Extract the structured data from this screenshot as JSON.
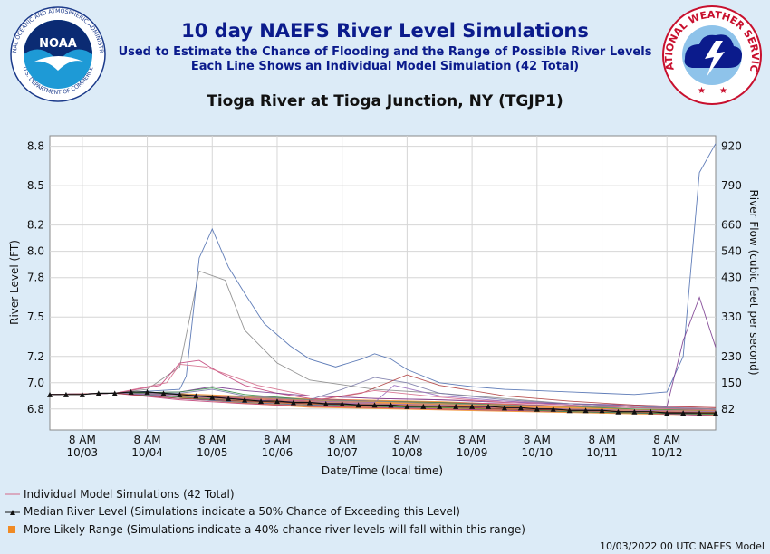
{
  "header": {
    "title": "10 day NAEFS River Level Simulations",
    "subtitle1": "Used to Estimate the Chance of Flooding and the Range of Possible River Levels",
    "subtitle2": "Each Line Shows an Individual Model Simulation (42 Total)",
    "station": "Tioga River at Tioga Junction, NY (TGJP1)"
  },
  "logos": {
    "noaa_text": "NOAA",
    "noaa_ring": "NATIONAL OCEANIC AND ATMOSPHERIC ADMINISTRATION",
    "noaa_ring_bottom": "U.S. DEPARTMENT OF COMMERCE",
    "nws_ring": "NATIONAL WEATHER SERVICE"
  },
  "legend": {
    "individual": "Individual Model Simulations (42 Total)",
    "median": "Median River Level (Simulations indicate a 50% Chance of Exceeding this Level)",
    "range": "More Likely Range (Simulations indicate a 40% chance river levels will fall within this range)"
  },
  "footer": "10/03/2022 00 UTC NAEFS Model",
  "colors": {
    "median": "#111111",
    "range": "#f08a24",
    "spaghetti": [
      "#d46a8a",
      "#7a7aa8",
      "#c2447a",
      "#8a8a8a",
      "#4f6fb0",
      "#7a3b8f",
      "#3a8f4a",
      "#b04040",
      "#9a6fc0",
      "#e07aa0"
    ]
  },
  "chart_data": {
    "type": "line",
    "xlabel": "Date/Time (local time)",
    "ylabel": "River Level (FT)",
    "ylabel_right": "River Flow (cubic feet per second)",
    "ylim": [
      6.64,
      8.88
    ],
    "x_ticks": [
      {
        "t": "8 AM",
        "d": "10/03"
      },
      {
        "t": "8 AM",
        "d": "10/04"
      },
      {
        "t": "8 AM",
        "d": "10/05"
      },
      {
        "t": "8 AM",
        "d": "10/06"
      },
      {
        "t": "8 AM",
        "d": "10/07"
      },
      {
        "t": "8 AM",
        "d": "10/08"
      },
      {
        "t": "8 AM",
        "d": "10/09"
      },
      {
        "t": "8 AM",
        "d": "10/10"
      },
      {
        "t": "8 AM",
        "d": "10/11"
      },
      {
        "t": "8 AM",
        "d": "10/12"
      }
    ],
    "y_ticks": [
      "6.8",
      "7.0",
      "7.2",
      "7.5",
      "7.8",
      "8.0",
      "8.2",
      "8.5",
      "8.8"
    ],
    "y_tick_values": [
      6.8,
      7.0,
      7.2,
      7.5,
      7.8,
      8.0,
      8.2,
      8.5,
      8.8
    ],
    "flow_ticks": [
      "82",
      "150",
      "230",
      "330",
      "430",
      "540",
      "660",
      "790",
      "920"
    ],
    "grid": true,
    "x_days": [
      0,
      10.25
    ],
    "median": {
      "name": "Median River Level",
      "x": [
        0,
        0.25,
        0.5,
        0.75,
        1,
        1.25,
        1.5,
        1.75,
        2,
        2.25,
        2.5,
        2.75,
        3,
        3.25,
        3.5,
        3.75,
        4,
        4.25,
        4.5,
        4.75,
        5,
        5.25,
        5.5,
        5.75,
        6,
        6.25,
        6.5,
        6.75,
        7,
        7.25,
        7.5,
        7.75,
        8,
        8.25,
        8.5,
        8.75,
        9,
        9.25,
        9.5,
        9.75,
        10,
        10.25
      ],
      "y": [
        6.91,
        6.91,
        6.91,
        6.92,
        6.92,
        6.93,
        6.93,
        6.92,
        6.91,
        6.9,
        6.89,
        6.88,
        6.87,
        6.86,
        6.86,
        6.85,
        6.85,
        6.84,
        6.84,
        6.83,
        6.83,
        6.83,
        6.82,
        6.82,
        6.82,
        6.82,
        6.82,
        6.82,
        6.81,
        6.81,
        6.8,
        6.8,
        6.79,
        6.79,
        6.79,
        6.78,
        6.78,
        6.78,
        6.77,
        6.77,
        6.77,
        6.77
      ]
    },
    "range": {
      "name": "More Likely Range",
      "x": [
        2,
        3,
        4,
        5,
        6,
        7,
        8,
        9,
        10.25
      ],
      "low": [
        6.88,
        6.84,
        6.81,
        6.8,
        6.79,
        6.78,
        6.77,
        6.76,
        6.75
      ],
      "high": [
        6.92,
        6.9,
        6.88,
        6.87,
        6.86,
        6.84,
        6.82,
        6.8,
        6.79
      ]
    },
    "series": [
      {
        "x": [
          0,
          1,
          1.5,
          2,
          2.3,
          2.7,
          3,
          3.5,
          4,
          5,
          6,
          7,
          8,
          9,
          10.25
        ],
        "y": [
          6.91,
          6.92,
          6.95,
          7.12,
          7.85,
          7.78,
          7.4,
          7.15,
          7.02,
          6.95,
          6.92,
          6.88,
          6.84,
          6.82,
          6.79
        ],
        "c": "#8a8a8a"
      },
      {
        "x": [
          0,
          1,
          2,
          2.1,
          2.3,
          2.5,
          2.75,
          3,
          3.3,
          3.7,
          4,
          4.4,
          4.8,
          5,
          5.25,
          5.5,
          5.75,
          6,
          6.5,
          7,
          7.5,
          8,
          8.5,
          9,
          9.5,
          9.75,
          10,
          10.25
        ],
        "y": [
          6.91,
          6.92,
          6.95,
          7.05,
          7.95,
          8.17,
          7.88,
          7.68,
          7.45,
          7.28,
          7.18,
          7.12,
          7.18,
          7.22,
          7.18,
          7.1,
          7.05,
          7.0,
          6.97,
          6.95,
          6.94,
          6.93,
          6.92,
          6.91,
          6.93,
          7.2,
          8.6,
          8.82
        ],
        "c": "#4f6fb0"
      },
      {
        "x": [
          0,
          1,
          1.7,
          2,
          2.3,
          2.6,
          3,
          3.5,
          4,
          5,
          6,
          7,
          8,
          9,
          10.25
        ],
        "y": [
          6.91,
          6.92,
          6.98,
          7.15,
          7.17,
          7.08,
          6.98,
          6.92,
          6.88,
          6.86,
          6.85,
          6.84,
          6.82,
          6.81,
          6.8
        ],
        "c": "#c2447a"
      },
      {
        "x": [
          0,
          1,
          1.8,
          2,
          2.4,
          2.8,
          3.2,
          4,
          5,
          6,
          7,
          8,
          9,
          10.25
        ],
        "y": [
          6.91,
          6.92,
          7.0,
          7.14,
          7.12,
          7.05,
          6.98,
          6.9,
          6.88,
          6.87,
          6.86,
          6.84,
          6.82,
          6.81
        ],
        "c": "#d46a8a"
      },
      {
        "x": [
          0,
          1,
          2,
          2.5,
          3,
          4,
          5,
          6,
          7,
          8,
          9,
          9.5,
          9.75,
          10,
          10.25
        ],
        "y": [
          6.91,
          6.92,
          6.93,
          6.97,
          6.94,
          6.9,
          6.88,
          6.87,
          6.85,
          6.84,
          6.83,
          6.82,
          7.32,
          7.65,
          7.27
        ],
        "c": "#7a3b8f"
      },
      {
        "x": [
          0,
          1,
          2,
          2.5,
          3,
          4,
          4.5,
          5,
          5.5,
          6,
          7,
          8,
          9,
          10.25
        ],
        "y": [
          6.91,
          6.92,
          6.92,
          6.95,
          6.9,
          6.87,
          6.95,
          7.04,
          7.0,
          6.92,
          6.87,
          6.84,
          6.82,
          6.8
        ],
        "c": "#7a7aa8"
      },
      {
        "x": [
          0,
          1,
          2,
          3,
          4,
          4.8,
          5.5,
          6,
          7,
          8,
          9,
          10.25
        ],
        "y": [
          6.91,
          6.92,
          6.91,
          6.88,
          6.86,
          6.92,
          7.06,
          6.98,
          6.9,
          6.86,
          6.83,
          6.81
        ],
        "c": "#b04040"
      },
      {
        "x": [
          0,
          1,
          2,
          2.5,
          3,
          4,
          5,
          6,
          7,
          8,
          9,
          10.25
        ],
        "y": [
          6.91,
          6.92,
          6.93,
          6.96,
          6.91,
          6.87,
          6.86,
          6.85,
          6.83,
          6.82,
          6.8,
          6.79
        ],
        "c": "#3a8f4a"
      },
      {
        "x": [
          0,
          1,
          2,
          3,
          4,
          5,
          5.3,
          6,
          7,
          8,
          9,
          10.25
        ],
        "y": [
          6.91,
          6.92,
          6.9,
          6.88,
          6.86,
          6.85,
          6.98,
          6.9,
          6.86,
          6.83,
          6.81,
          6.8
        ],
        "c": "#9a6fc0"
      },
      {
        "x": [
          0,
          1,
          2,
          3,
          4,
          5,
          6,
          7,
          8,
          9,
          10.25
        ],
        "y": [
          6.91,
          6.92,
          6.89,
          6.86,
          6.84,
          6.83,
          6.82,
          6.81,
          6.79,
          6.78,
          6.76
        ],
        "c": "#e07aa0"
      },
      {
        "x": [
          0,
          1,
          2,
          3,
          4,
          5,
          6,
          7,
          8,
          9,
          10.25
        ],
        "y": [
          6.91,
          6.92,
          6.88,
          6.85,
          6.83,
          6.82,
          6.8,
          6.79,
          6.78,
          6.77,
          6.75
        ],
        "c": "#4f6fb0"
      },
      {
        "x": [
          0,
          1,
          2,
          3,
          4,
          5,
          6,
          7,
          8,
          9,
          10.25
        ],
        "y": [
          6.91,
          6.92,
          6.9,
          6.87,
          6.85,
          6.83,
          6.82,
          6.8,
          6.79,
          6.78,
          6.77
        ],
        "c": "#7a3b8f"
      },
      {
        "x": [
          0,
          1,
          2,
          3,
          4,
          5,
          6,
          7,
          8,
          9,
          10.25
        ],
        "y": [
          6.91,
          6.92,
          6.91,
          6.89,
          6.87,
          6.86,
          6.84,
          6.83,
          6.82,
          6.81,
          6.8
        ],
        "c": "#8a8a8a"
      },
      {
        "x": [
          0,
          1,
          2,
          3,
          4,
          5,
          6,
          7,
          8,
          9,
          10.25
        ],
        "y": [
          6.91,
          6.92,
          6.87,
          6.84,
          6.82,
          6.81,
          6.8,
          6.79,
          6.78,
          6.77,
          6.75
        ],
        "c": "#c2447a"
      },
      {
        "x": [
          0,
          1,
          2,
          3,
          4,
          4.5,
          5,
          6,
          7,
          8,
          9,
          10.25
        ],
        "y": [
          6.91,
          6.92,
          6.9,
          6.88,
          6.86,
          6.9,
          6.94,
          6.89,
          6.85,
          6.83,
          6.81,
          6.79
        ],
        "c": "#d46a8a"
      },
      {
        "x": [
          0,
          1,
          2,
          3,
          4,
          5,
          6,
          7,
          8,
          9,
          10.25
        ],
        "y": [
          6.91,
          6.92,
          6.89,
          6.86,
          6.84,
          6.82,
          6.81,
          6.8,
          6.78,
          6.77,
          6.76
        ],
        "c": "#3a8f4a"
      },
      {
        "x": [
          0,
          1,
          2,
          3,
          4,
          5,
          6,
          7,
          8,
          9,
          10.25
        ],
        "y": [
          6.91,
          6.92,
          6.9,
          6.87,
          6.85,
          6.84,
          6.83,
          6.81,
          6.8,
          6.79,
          6.78
        ],
        "c": "#9a6fc0"
      },
      {
        "x": [
          0,
          1,
          2,
          3,
          4,
          5,
          6,
          7,
          8,
          9,
          10.25
        ],
        "y": [
          6.91,
          6.92,
          6.88,
          6.86,
          6.84,
          6.83,
          6.82,
          6.8,
          6.79,
          6.78,
          6.77
        ],
        "c": "#b04040"
      }
    ]
  }
}
